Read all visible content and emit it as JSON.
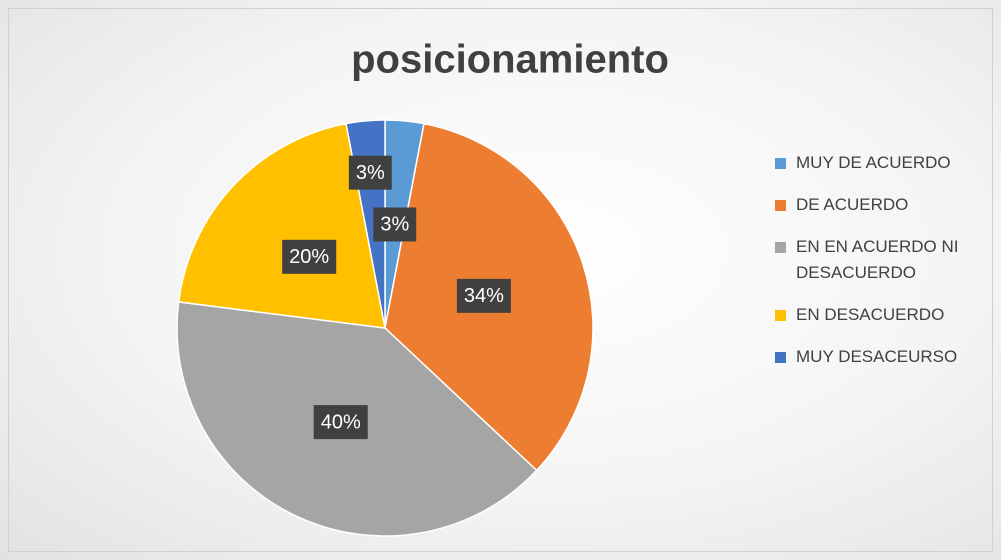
{
  "chart_data": {
    "type": "pie",
    "title": "posicionamiento",
    "categories": [
      "MUY DE ACUERDO",
      "DE ACUERDO",
      "EN EN ACUERDO NI DESACUERDO",
      "EN DESACUERDO",
      "MUY DESACEURSO"
    ],
    "values": [
      3,
      34,
      40,
      20,
      3
    ],
    "value_labels": [
      "3%",
      "34%",
      "40%",
      "20%",
      "3%"
    ],
    "colors": [
      "#5b9bd5",
      "#ed7d31",
      "#a5a5a5",
      "#ffc000",
      "#4472c4"
    ],
    "legend": "right"
  }
}
